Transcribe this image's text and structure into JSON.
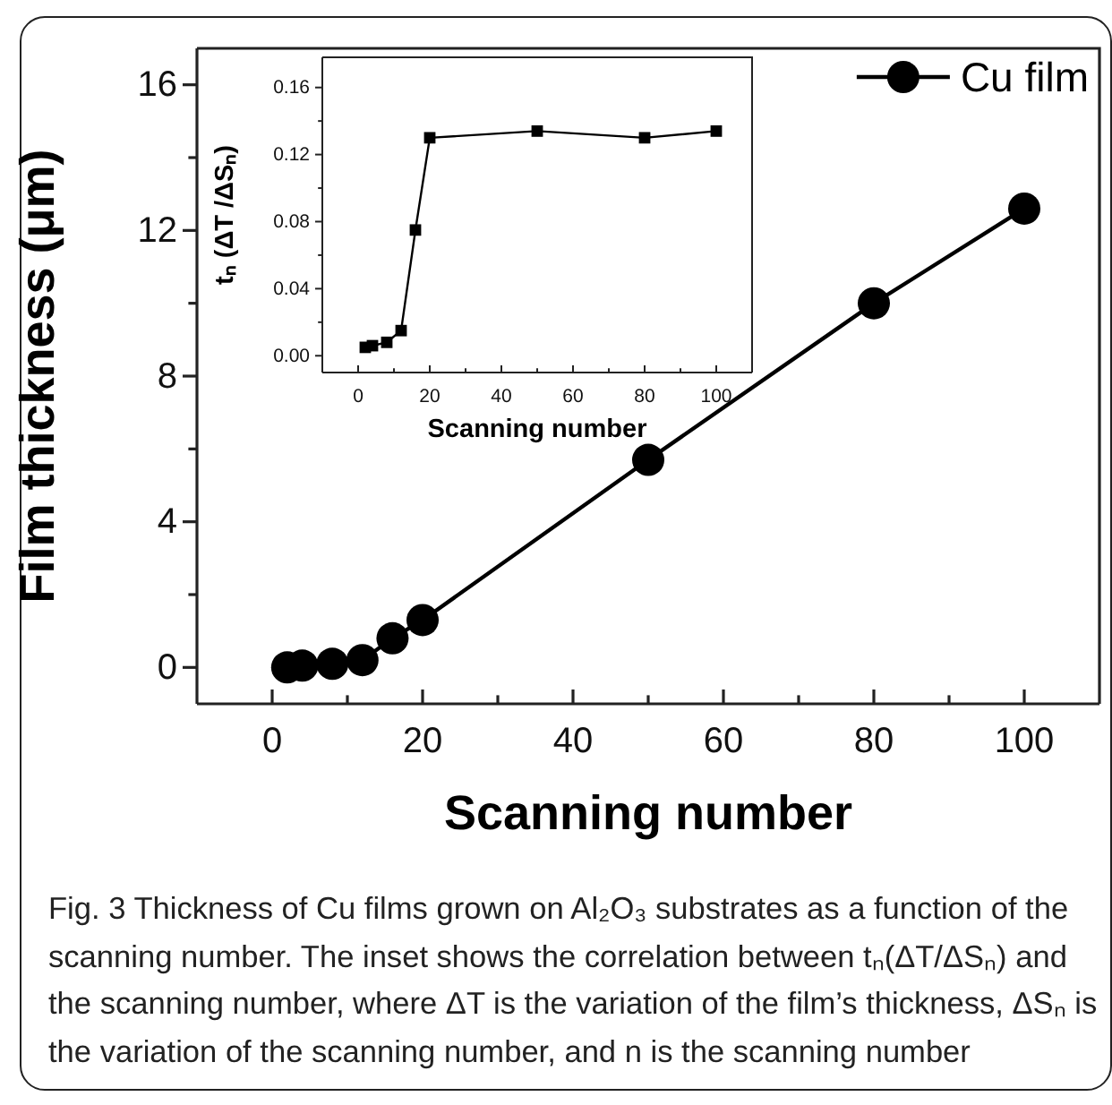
{
  "chart_data": [
    {
      "type": "line",
      "xlabel": "Scanning number",
      "ylabel": "Film thickness (μm)",
      "x": [
        2,
        4,
        8,
        12,
        16,
        20,
        50,
        80,
        100
      ],
      "series": [
        {
          "name": "Cu film",
          "color": "#000000",
          "values": [
            0.0,
            0.05,
            0.1,
            0.2,
            0.8,
            1.3,
            5.7,
            10.0,
            12.6
          ]
        }
      ],
      "xlim": [
        -10,
        110
      ],
      "ylim": [
        -1,
        17
      ],
      "xticks": [
        0,
        {
          "value": 10,
          "label": null
        },
        20,
        {
          "value": 30,
          "label": null
        },
        40,
        {
          "value": 50,
          "label": null
        },
        60,
        {
          "value": 70,
          "label": null
        },
        80,
        {
          "value": 90,
          "label": null
        },
        100
      ],
      "yticks": [
        0,
        {
          "value": 2,
          "label": null
        },
        4,
        {
          "value": 6,
          "label": null
        },
        8,
        {
          "value": 10,
          "label": null
        },
        12,
        {
          "value": 14,
          "label": null
        },
        16
      ],
      "marker": "circle",
      "line_style": "solid",
      "legend": "top right",
      "grid": false,
      "annotations": [
        "Fig. 3 Thickness of Cu films grown on Al₂O₃ substrates as a function of the scanning number. The inset shows the correlation between tₙ(ΔT/ΔSₙ) and the scanning number, where ΔT is the variation of the film’s thickness, ΔSₙ is the variation of the scanning number, and n is the scanning number"
      ]
    },
    {
      "type": "line",
      "xlabel": "Scanning number",
      "ylabel": "tₙ (ΔT /ΔSₙ)",
      "x": [
        2,
        4,
        8,
        12,
        16,
        20,
        50,
        80,
        100
      ],
      "series": [
        {
          "color": "#000000",
          "values": [
            0.005,
            0.006,
            0.008,
            0.015,
            0.075,
            0.13,
            0.134,
            0.13,
            0.134
          ]
        }
      ],
      "xlim": [
        -10,
        110
      ],
      "ylim": [
        -0.01,
        0.178
      ],
      "xticks": [
        0,
        {
          "value": 10,
          "label": null
        },
        20,
        {
          "value": 30,
          "label": null
        },
        40,
        {
          "value": 50,
          "label": null
        },
        60,
        {
          "value": 70,
          "label": null
        },
        80,
        {
          "value": 90,
          "label": null
        },
        100
      ],
      "yticks": [
        {
          "value": 0,
          "label": "0.00"
        },
        {
          "value": 0.02,
          "label": null
        },
        0.04,
        {
          "value": 0.06,
          "label": null
        },
        0.08,
        {
          "value": 0.1,
          "label": null
        },
        0.12,
        {
          "value": 0.14,
          "label": null
        },
        0.16
      ],
      "marker": "square",
      "line_style": "solid",
      "legend": false,
      "grid": false
    }
  ]
}
